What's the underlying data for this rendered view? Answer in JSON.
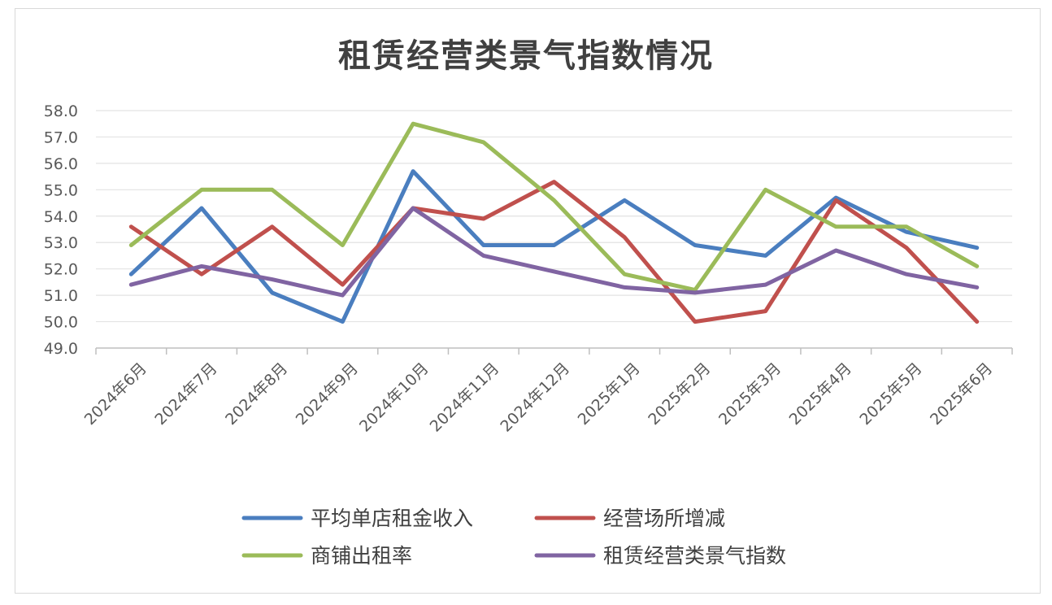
{
  "chart_data": {
    "type": "line",
    "title": "租赁经营类景气指数情况",
    "categories": [
      "2024年6月",
      "2024年7月",
      "2024年8月",
      "2024年9月",
      "2024年10月",
      "2024年11月",
      "2024年12月",
      "2025年1月",
      "2025年2月",
      "2025年3月",
      "2025年4月",
      "2025年5月",
      "2025年6月"
    ],
    "ylim": [
      49.0,
      58.0
    ],
    "yticks": [
      "49.0",
      "50.0",
      "51.0",
      "52.0",
      "53.0",
      "54.0",
      "55.0",
      "56.0",
      "57.0",
      "58.0"
    ],
    "grid": true,
    "legend_position": "bottom",
    "series": [
      {
        "name": "平均单店租金收入",
        "color": "#4a7ebf",
        "values": [
          51.8,
          54.3,
          51.1,
          50.0,
          55.7,
          52.9,
          52.9,
          54.6,
          52.9,
          52.5,
          54.7,
          53.4,
          52.8
        ]
      },
      {
        "name": "经营场所增减",
        "color": "#c0504d",
        "values": [
          53.6,
          51.8,
          53.6,
          51.4,
          54.3,
          53.9,
          55.3,
          53.2,
          50.0,
          50.4,
          54.6,
          52.8,
          50.0
        ]
      },
      {
        "name": "商铺出租率",
        "color": "#9bbb59",
        "values": [
          52.9,
          55.0,
          55.0,
          52.9,
          57.5,
          56.8,
          54.6,
          51.8,
          51.2,
          55.0,
          53.6,
          53.6,
          52.1
        ]
      },
      {
        "name": "租赁经营类景气指数",
        "color": "#8064a2",
        "values": [
          51.4,
          52.1,
          51.6,
          51.0,
          54.3,
          52.5,
          51.9,
          51.3,
          51.1,
          51.4,
          52.7,
          51.8,
          51.3
        ]
      }
    ]
  }
}
